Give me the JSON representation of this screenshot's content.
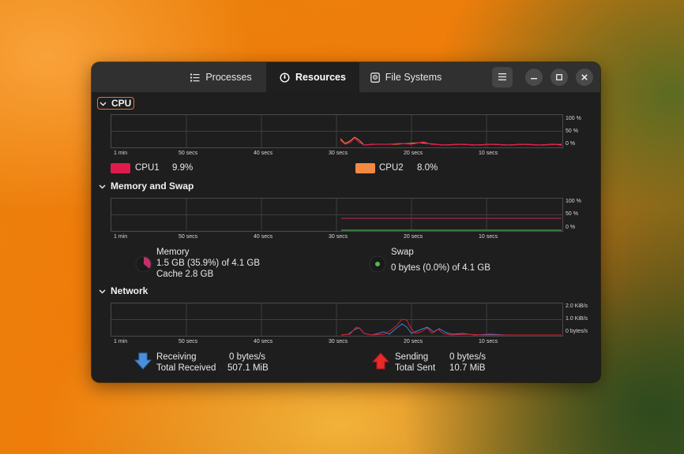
{
  "tabs": [
    {
      "label": "Processes",
      "icon": "list-icon"
    },
    {
      "label": "Resources",
      "icon": "gauge-icon"
    },
    {
      "label": "File Systems",
      "icon": "disk-icon"
    }
  ],
  "sections": {
    "cpu": {
      "title": "CPU"
    },
    "memory": {
      "title": "Memory and Swap"
    },
    "network": {
      "title": "Network"
    }
  },
  "time_axis": [
    "1 min",
    "50 secs",
    "40 secs",
    "30 secs",
    "20 secs",
    "10 secs"
  ],
  "percent_axis": [
    "100 %",
    "50 %",
    "0 %"
  ],
  "network_axis": [
    "2.0 KiB/s",
    "1.0 KiB/s",
    "0 bytes/s"
  ],
  "cpu": {
    "cpu1": {
      "label": "CPU1",
      "value": "9.9%",
      "color": "#e01b4c"
    },
    "cpu2": {
      "label": "CPU2",
      "value": "8.0%",
      "color": "#f28a43"
    }
  },
  "memory": {
    "memory": {
      "label": "Memory",
      "line1": "1.5 GB (35.9%) of 4.1 GB",
      "line2": "Cache 2.8 GB",
      "color": "#c0306a",
      "fraction": 0.359
    },
    "swap": {
      "label": "Swap",
      "line1": "0 bytes (0.0%) of 4.1 GB",
      "color": "#4eb84e",
      "fraction": 0.0
    }
  },
  "network": {
    "receiving": {
      "label": "Receiving",
      "value": "0 bytes/s",
      "color": "#3584e4"
    },
    "total_received": {
      "label": "Total Received",
      "value": "507.1 MiB"
    },
    "sending": {
      "label": "Sending",
      "value": "0 bytes/s",
      "color": "#e01b24"
    },
    "total_sent": {
      "label": "Total Sent",
      "value": "10.7 MiB"
    }
  }
}
